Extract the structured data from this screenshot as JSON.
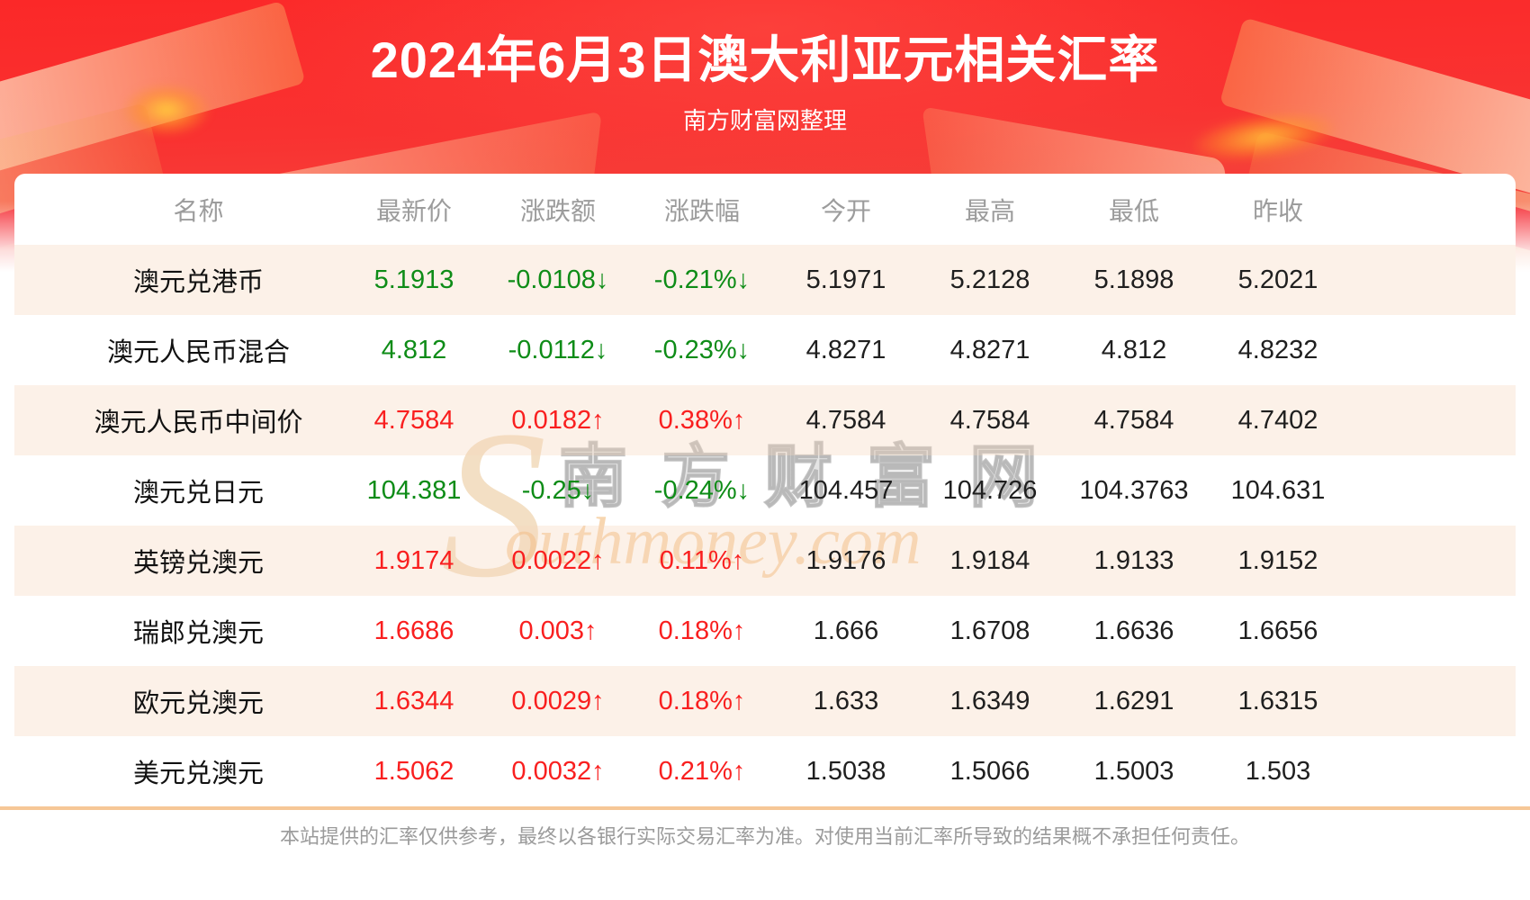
{
  "page": {
    "title": "2024年6月3日澳大利亚元相关汇率",
    "subtitle": "南方财富网整理",
    "disclaimer": "本站提供的汇率仅供参考，最终以各银行实际交易汇率为准。对使用当前汇率所导致的结果概不承担任何责任。"
  },
  "watermark": {
    "swoosh": "S",
    "cn": "南方财富网",
    "en": "outhmoney.com"
  },
  "colors": {
    "band_red_top": "#fb2828",
    "band_red_bottom": "#ef654b",
    "up_red": "#f91f1f",
    "down_green": "#0e8c17",
    "row_peach": "#fdf3ec",
    "divider_orange": "#f6c796",
    "header_gray": "#9c9c9c",
    "gold_decoration": "#f9a055"
  },
  "table": {
    "headers": [
      "名称",
      "最新价",
      "涨跌额",
      "涨跌幅",
      "今开",
      "最高",
      "最低",
      "昨收"
    ],
    "rows": [
      {
        "name": "澳元兑港币",
        "latest": "5.1913",
        "change": "-0.0108↓",
        "pct": "-0.21%↓",
        "open": "5.1971",
        "high": "5.2128",
        "low": "5.1898",
        "prev": "5.2021",
        "trend": "down"
      },
      {
        "name": "澳元人民币混合",
        "latest": "4.812",
        "change": "-0.0112↓",
        "pct": "-0.23%↓",
        "open": "4.8271",
        "high": "4.8271",
        "low": "4.812",
        "prev": "4.8232",
        "trend": "down"
      },
      {
        "name": "澳元人民币中间价",
        "latest": "4.7584",
        "change": "0.0182↑",
        "pct": "0.38%↑",
        "open": "4.7584",
        "high": "4.7584",
        "low": "4.7584",
        "prev": "4.7402",
        "trend": "up"
      },
      {
        "name": "澳元兑日元",
        "latest": "104.381",
        "change": "-0.25↓",
        "pct": "-0.24%↓",
        "open": "104.457",
        "high": "104.726",
        "low": "104.3763",
        "prev": "104.631",
        "trend": "down"
      },
      {
        "name": "英镑兑澳元",
        "latest": "1.9174",
        "change": "0.0022↑",
        "pct": "0.11%↑",
        "open": "1.9176",
        "high": "1.9184",
        "low": "1.9133",
        "prev": "1.9152",
        "trend": "up"
      },
      {
        "name": "瑞郎兑澳元",
        "latest": "1.6686",
        "change": "0.003↑",
        "pct": "0.18%↑",
        "open": "1.666",
        "high": "1.6708",
        "low": "1.6636",
        "prev": "1.6656",
        "trend": "up"
      },
      {
        "name": "欧元兑澳元",
        "latest": "1.6344",
        "change": "0.0029↑",
        "pct": "0.18%↑",
        "open": "1.633",
        "high": "1.6349",
        "low": "1.6291",
        "prev": "1.6315",
        "trend": "up"
      },
      {
        "name": "美元兑澳元",
        "latest": "1.5062",
        "change": "0.0032↑",
        "pct": "0.21%↑",
        "open": "1.5038",
        "high": "1.5066",
        "low": "1.5003",
        "prev": "1.503",
        "trend": "up"
      }
    ]
  }
}
